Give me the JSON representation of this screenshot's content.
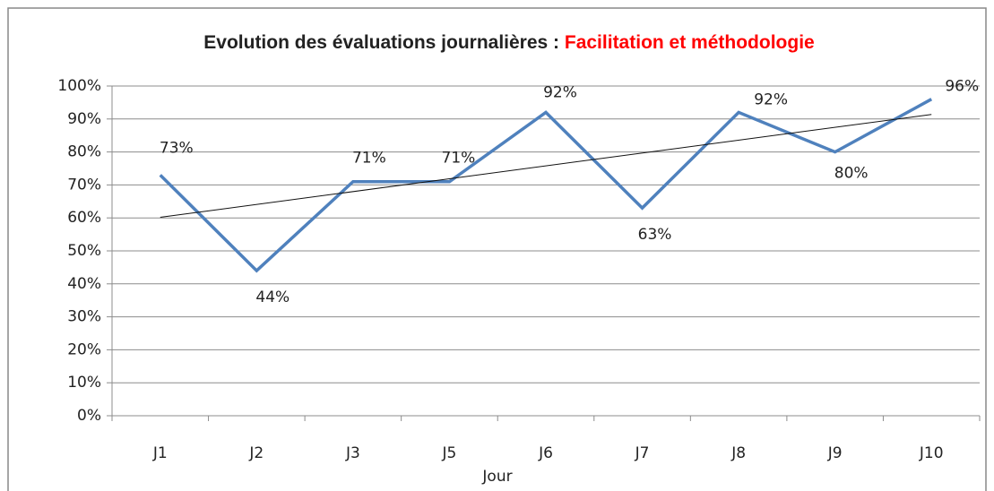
{
  "chart_data": {
    "type": "line",
    "title": "Evolution des évaluations journalières :",
    "title_highlight": "Facilitation et méthodologie",
    "x_label": "Jour",
    "categories": [
      "J1",
      "J2",
      "J3",
      "J5",
      "J6",
      "J7",
      "J8",
      "J9",
      "J10"
    ],
    "values": [
      73,
      44,
      71,
      71,
      92,
      63,
      92,
      80,
      96
    ],
    "value_labels": [
      "73%",
      "44%",
      "71%",
      "71%",
      "92%",
      "63%",
      "92%",
      "80%",
      "96%"
    ],
    "color": "#4f81bd",
    "trendline": true,
    "ylim": [
      0,
      100
    ],
    "yticks": [
      {
        "value": 0,
        "label": "0%"
      },
      {
        "value": 10,
        "label": "10%"
      },
      {
        "value": 20,
        "label": "20%"
      },
      {
        "value": 30,
        "label": "30%"
      },
      {
        "value": 40,
        "label": "40%"
      },
      {
        "value": 50,
        "label": "50%"
      },
      {
        "value": 60,
        "label": "60%"
      },
      {
        "value": 70,
        "label": "70%"
      },
      {
        "value": 80,
        "label": "80%"
      },
      {
        "value": 90,
        "label": "90%"
      },
      {
        "value": 100,
        "label": "100%"
      }
    ],
    "grid": true
  }
}
